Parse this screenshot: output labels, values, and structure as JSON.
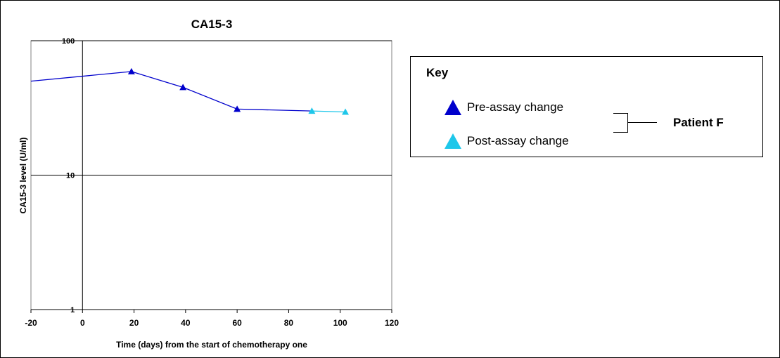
{
  "chart_data": {
    "type": "line",
    "title": "CA15-3",
    "xlabel": "Time (days) from the start of chemotherapy one",
    "ylabel": "CA15-3 level (U/ml)",
    "xlim": [
      -20,
      120
    ],
    "ylim": [
      1,
      100
    ],
    "yscale": "log",
    "x_ticks": [
      "-20",
      "0",
      "20",
      "40",
      "60",
      "80",
      "100",
      "120"
    ],
    "y_ticks": [
      "1",
      "10",
      "100"
    ],
    "grid": "horizontal major gridlines",
    "series": [
      {
        "name": "Pre-assay change",
        "color": "#0000cc",
        "marker": "triangle",
        "x": [
          -20,
          19,
          39,
          60,
          89
        ],
        "y": [
          50,
          59,
          45,
          31,
          30
        ],
        "marker_x": [
          19,
          39,
          60
        ],
        "marker_y": [
          59,
          45,
          31
        ]
      },
      {
        "name": "Post-assay change",
        "color": "#1ec7ea",
        "marker": "triangle",
        "x": [
          89,
          102
        ],
        "y": [
          30,
          29.5
        ],
        "marker_x": [
          89,
          102
        ],
        "marker_y": [
          30,
          29.5
        ]
      }
    ]
  },
  "key": {
    "title": "Key",
    "pre_label": "Pre-assay change",
    "post_label": "Post-assay change",
    "group_label": "Patient F"
  }
}
